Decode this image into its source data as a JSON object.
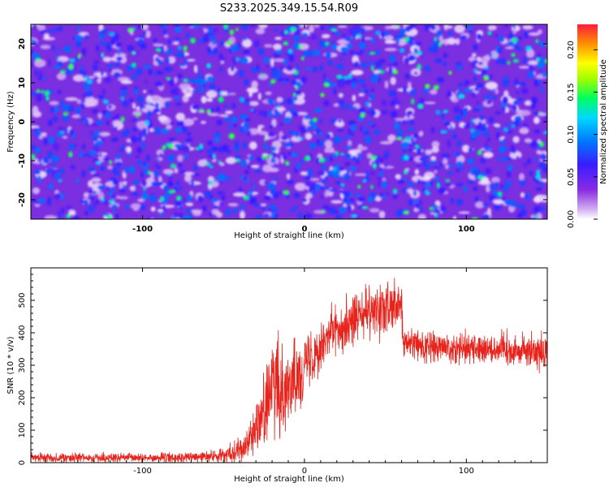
{
  "title": "S233.2025.349.15.54.R09",
  "chart_data": [
    {
      "type": "heatmap",
      "title": "S233.2025.349.15.54.R09",
      "xlabel": "Height of straight line (km)",
      "ylabel": "Frequency (Hz)",
      "xlim": [
        -169,
        150
      ],
      "ylim": [
        -25,
        25
      ],
      "x_ticks": [
        -100,
        0,
        100
      ],
      "y_ticks": [
        -20,
        -10,
        0,
        10,
        20
      ],
      "colorbar": {
        "label": "Normalized spectral amplitude",
        "range": [
          0,
          0.23
        ],
        "ticks": [
          0,
          0.05,
          0.1,
          0.15,
          0.2
        ],
        "tick_labels": [
          "0.00",
          "0.05",
          "0.10",
          "0.15",
          "0.20"
        ],
        "colors": [
          "#ffffff",
          "#c89af0",
          "#8a2be2",
          "#3a1cff",
          "#0078ff",
          "#00d8ff",
          "#00ff60",
          "#a0ff00",
          "#ffff00",
          "#ff9000",
          "#ff1a3c"
        ]
      },
      "background_amplitude": 0.03,
      "peak_amplitude": 0.2,
      "grid": false
    },
    {
      "type": "line",
      "xlabel": "Height of straight line (km)",
      "ylabel": "SNR (10 * v/v)",
      "xlim": [
        -169,
        150
      ],
      "ylim": [
        0,
        600
      ],
      "x_ticks": [
        -100,
        0,
        100
      ],
      "y_ticks": [
        0,
        100,
        200,
        300,
        400,
        500
      ],
      "line_color": "#e8231c",
      "grid": false,
      "series": [
        {
          "x": [
            -169,
            -120,
            -80,
            -60,
            -50,
            -45,
            -40,
            -35,
            -30,
            -25,
            -20,
            -15,
            -10,
            -5,
            0,
            5,
            10,
            15,
            20,
            30,
            40,
            50,
            55,
            60,
            61,
            65,
            70,
            80,
            100,
            120,
            140,
            150
          ],
          "values": [
            15,
            15,
            15,
            18,
            22,
            30,
            45,
            70,
            110,
            160,
            230,
            230,
            250,
            270,
            300,
            330,
            370,
            400,
            410,
            440,
            460,
            470,
            475,
            480,
            370,
            370,
            360,
            355,
            355,
            350,
            345,
            340
          ],
          "noise_amplitude": [
            10,
            10,
            10,
            12,
            15,
            20,
            25,
            35,
            60,
            80,
            95,
            100,
            90,
            80,
            70,
            65,
            60,
            55,
            55,
            55,
            55,
            55,
            55,
            55,
            35,
            35,
            35,
            35,
            35,
            35,
            35,
            35
          ]
        }
      ]
    }
  ]
}
